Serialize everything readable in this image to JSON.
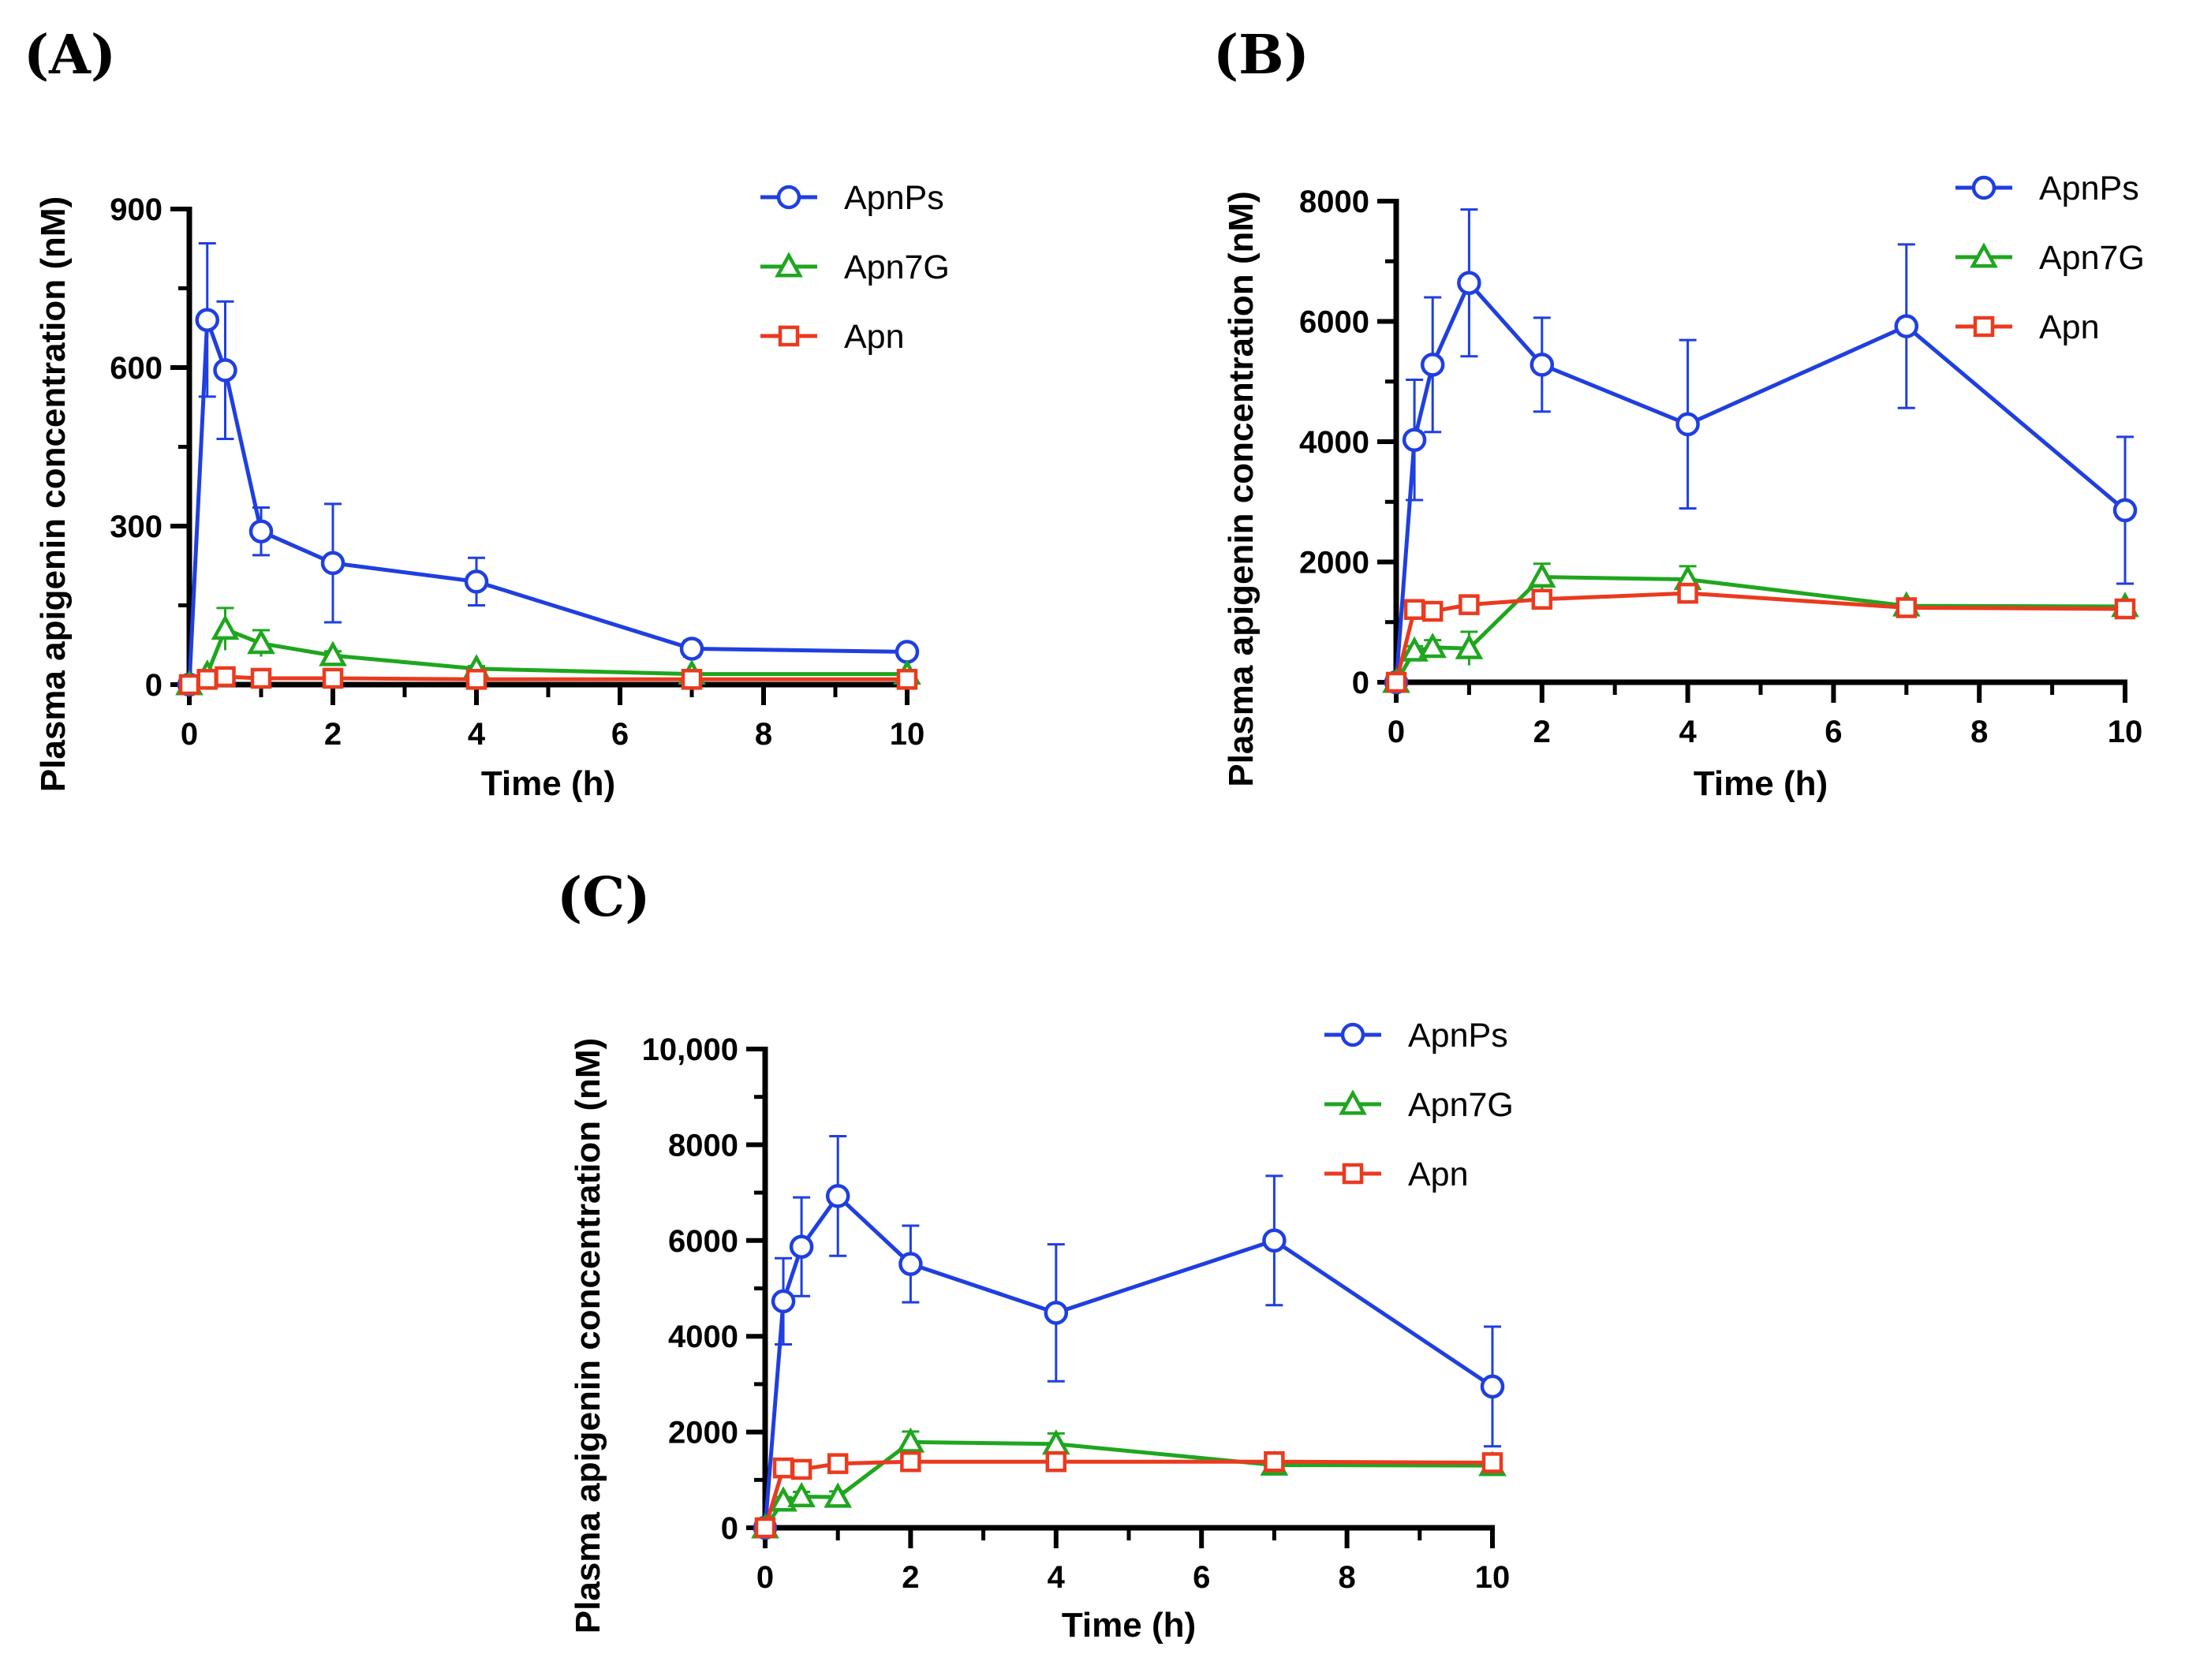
{
  "panels": [
    {
      "label": "(A)"
    },
    {
      "label": "(B)"
    },
    {
      "label": "(C)"
    }
  ],
  "chart_data": [
    {
      "type": "line",
      "panel": "(A)",
      "xlabel": "Time (h)",
      "ylabel": "Plasma apigenin concentration (nM)",
      "xlim": [
        0,
        10
      ],
      "ylim": [
        0,
        900
      ],
      "xticks": [
        0,
        2,
        4,
        6,
        8,
        10
      ],
      "xtick_labels": [
        "0",
        "2",
        "4",
        "6",
        "8",
        "10"
      ],
      "yticks": [
        0,
        300,
        600,
        900
      ],
      "ytick_labels": [
        "0",
        "300",
        "600",
        "900"
      ],
      "x": [
        0,
        0.25,
        0.5,
        1,
        2,
        4,
        7,
        10
      ],
      "legend_position": "top-right",
      "series": [
        {
          "name": "ApnPs",
          "color": "#1f3fe0",
          "marker": "circle",
          "values": [
            0,
            690,
            595,
            290,
            230,
            195,
            68,
            62
          ],
          "errors": [
            0,
            145,
            130,
            45,
            112,
            45,
            15,
            10
          ]
        },
        {
          "name": "Apn7G",
          "color": "#1fa61f",
          "marker": "triangle",
          "values": [
            0,
            20,
            105,
            78,
            55,
            30,
            20,
            20
          ],
          "errors": [
            0,
            5,
            40,
            25,
            8,
            5,
            3,
            3
          ]
        },
        {
          "name": "Apn",
          "color": "#ea3a1f",
          "marker": "square",
          "values": [
            0,
            10,
            15,
            12,
            12,
            10,
            10,
            10
          ],
          "errors": [
            0,
            3,
            4,
            3,
            3,
            3,
            3,
            3
          ]
        }
      ]
    },
    {
      "type": "line",
      "panel": "(B)",
      "xlabel": "Time (h)",
      "ylabel": "Plasma apigenin concentration (nM)",
      "xlim": [
        0,
        10
      ],
      "ylim": [
        0,
        8000
      ],
      "xticks": [
        0,
        2,
        4,
        6,
        8,
        10
      ],
      "xtick_labels": [
        "0",
        "2",
        "4",
        "6",
        "8",
        "10"
      ],
      "yticks": [
        0,
        2000,
        4000,
        6000,
        8000
      ],
      "ytick_labels": [
        "0",
        "2000",
        "4000",
        "6000",
        "8000"
      ],
      "x": [
        0,
        0.25,
        0.5,
        1,
        2,
        4,
        7,
        10
      ],
      "legend_position": "top-right",
      "series": [
        {
          "name": "ApnPs",
          "color": "#1f3fe0",
          "marker": "circle",
          "values": [
            0,
            4030,
            5280,
            6640,
            5280,
            4290,
            5920,
            2860
          ],
          "errors": [
            0,
            1000,
            1120,
            1220,
            780,
            1400,
            1360,
            1220
          ]
        },
        {
          "name": "Apn7G",
          "color": "#1fa61f",
          "marker": "triangle",
          "values": [
            0,
            520,
            580,
            560,
            1750,
            1710,
            1270,
            1260
          ],
          "errors": [
            0,
            80,
            120,
            280,
            220,
            220,
            100,
            100
          ]
        },
        {
          "name": "Apn",
          "color": "#ea3a1f",
          "marker": "square",
          "values": [
            0,
            1210,
            1180,
            1290,
            1380,
            1480,
            1240,
            1220
          ],
          "errors": [
            0,
            60,
            60,
            60,
            60,
            60,
            60,
            60
          ]
        }
      ]
    },
    {
      "type": "line",
      "panel": "(C)",
      "xlabel": "Time (h)",
      "ylabel": "Plasma apigenin concentration (nM)",
      "xlim": [
        0,
        10
      ],
      "ylim": [
        0,
        10000
      ],
      "xticks": [
        0,
        2,
        4,
        6,
        8,
        10
      ],
      "xtick_labels": [
        "0",
        "2",
        "4",
        "6",
        "8",
        "10"
      ],
      "yticks": [
        0,
        2000,
        4000,
        6000,
        8000,
        10000
      ],
      "ytick_labels": [
        "0",
        "2000",
        "4000",
        "6000",
        "8000",
        "10,000"
      ],
      "x": [
        0,
        0.25,
        0.5,
        1,
        2,
        4,
        7,
        10
      ],
      "legend_position": "top-right",
      "series": [
        {
          "name": "ApnPs",
          "color": "#1f3fe0",
          "marker": "circle",
          "values": [
            0,
            4730,
            5870,
            6930,
            5510,
            4490,
            6000,
            2950
          ],
          "errors": [
            0,
            900,
            1030,
            1250,
            800,
            1430,
            1350,
            1250
          ]
        },
        {
          "name": "Apn7G",
          "color": "#1fa61f",
          "marker": "triangle",
          "values": [
            0,
            560,
            650,
            640,
            1790,
            1750,
            1310,
            1300
          ],
          "errors": [
            0,
            80,
            100,
            120,
            220,
            220,
            100,
            100
          ]
        },
        {
          "name": "Apn",
          "color": "#ea3a1f",
          "marker": "square",
          "values": [
            0,
            1250,
            1220,
            1340,
            1380,
            1380,
            1380,
            1360
          ],
          "errors": [
            0,
            60,
            60,
            60,
            60,
            60,
            60,
            60
          ]
        }
      ]
    }
  ]
}
